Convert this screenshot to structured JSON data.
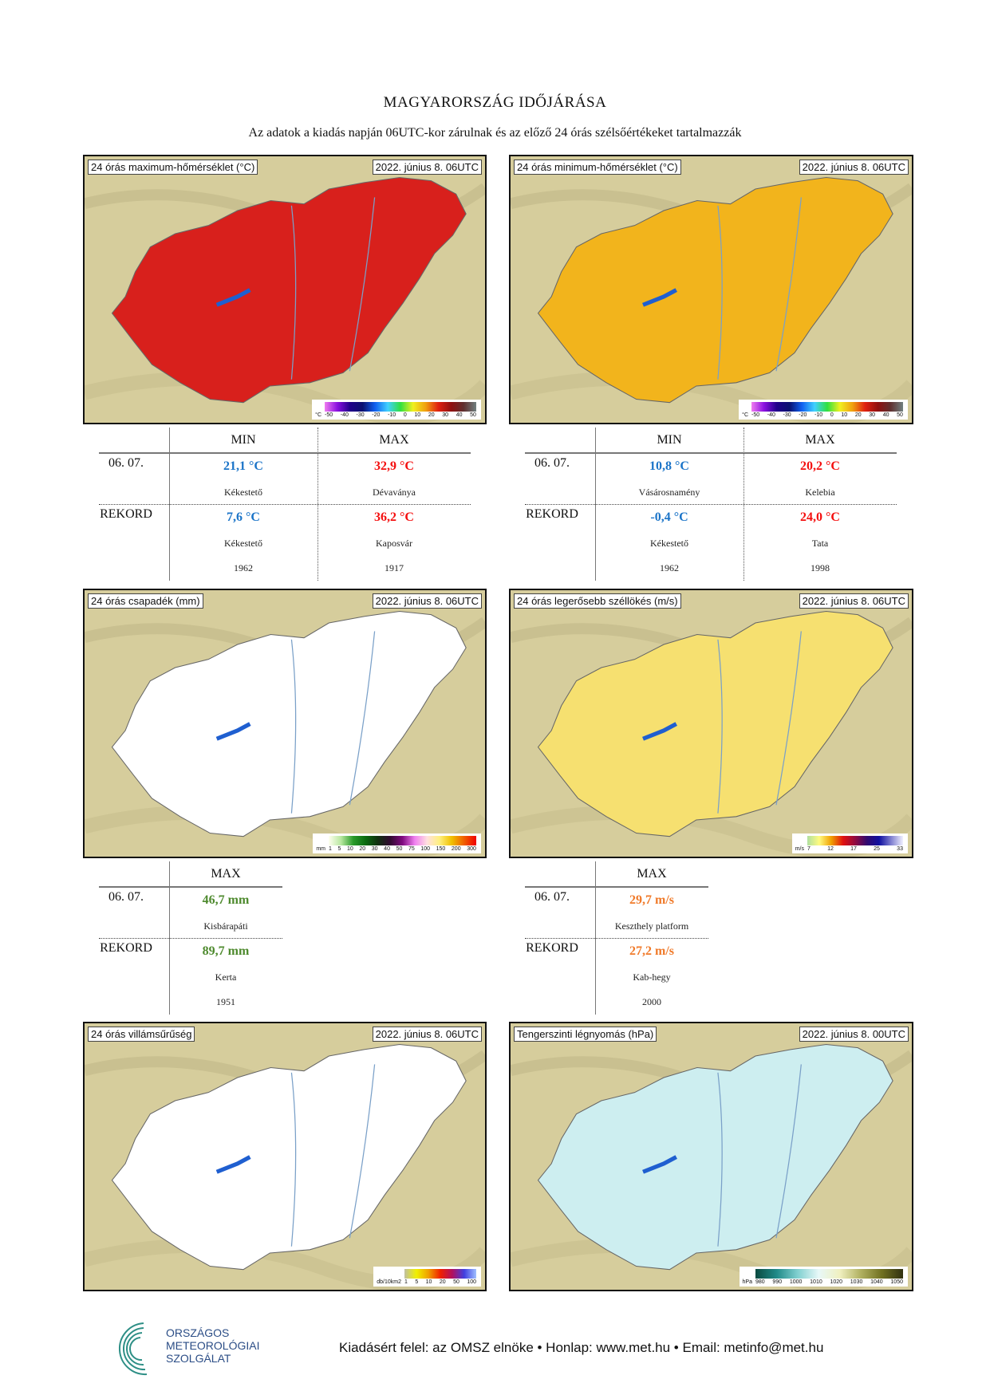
{
  "header": {
    "title": "MAGYARORSZÁG IDŐJÁRÁSA",
    "subtitle": "Az adatok a kiadás napján 06UTC-kor zárulnak és az előző 24 órás szélsőértékeket tartalmazzák"
  },
  "maps": [
    {
      "title": "24 órás maximum-hőmérséklet (°C)",
      "date": "2022. június 8. 06UTC",
      "legend_unit": "°C",
      "legend_ticks": [
        "-50",
        "-40",
        "-30",
        "-20",
        "-10",
        "0",
        "10",
        "20",
        "30",
        "40",
        "50"
      ],
      "fill": "#d8201c",
      "gradient": "linear-gradient(90deg,#f07cf0,#8a10e0,#20008a,#0a1070,#1060f0,#40d0ff,#30e040,#f0f020,#f0a010,#e02010,#901010,#603030,#708080)"
    },
    {
      "title": "24 órás minimum-hőmérséklet (°C)",
      "date": "2022. június 8. 06UTC",
      "legend_unit": "°C",
      "legend_ticks": [
        "-50",
        "-40",
        "-30",
        "-20",
        "-10",
        "0",
        "10",
        "20",
        "30",
        "40",
        "50"
      ],
      "fill": "#f2b41c",
      "gradient": "linear-gradient(90deg,#f07cf0,#8a10e0,#20008a,#0a1070,#1060f0,#40d0ff,#30e040,#f0f020,#f0a010,#e02010,#901010,#603030,#708080)"
    },
    {
      "title": "24 órás csapadék (mm)",
      "date": "2022. június 8. 06UTC",
      "legend_unit": "mm",
      "legend_ticks": [
        "1",
        "5",
        "10",
        "20",
        "30",
        "40",
        "50",
        "75",
        "100",
        "150",
        "200",
        "300"
      ],
      "fill": "#ffffff",
      "gradient": "linear-gradient(90deg,#fffff0,#b8e8a0,#2a9a2a,#0a6a10,#103010,#300a30,#800a80,#f080f0,#ffe0e0,#fff080,#f0c000,#f06000,#f00000)"
    },
    {
      "title": "24 órás legerősebb széllökés (m/s)",
      "date": "2022. június 8. 06UTC",
      "legend_unit": "m/s",
      "legend_ticks": [
        "7",
        "12",
        "17",
        "25",
        "33"
      ],
      "fill": "#f6e070",
      "gradient": "linear-gradient(90deg,#b0e0a0,#fffa80,#f0a000,#e01010,#900a40,#300a70,#1010a0,#8080d0,#f0f0ff)"
    },
    {
      "title": "24 órás villámsűrűség",
      "date": "2022. június 8. 06UTC",
      "legend_unit": "db/10km2",
      "legend_ticks": [
        "1",
        "5",
        "10",
        "20",
        "50",
        "100"
      ],
      "fill": "#ffffff",
      "gradient": "linear-gradient(90deg,#c0c0a0,#f0f000,#f0a000,#f02000,#b01060,#4040e0,#a0c0ff)"
    },
    {
      "title": "Tengerszinti légnyomás (hPa)",
      "date": "2022. június 8. 00UTC",
      "legend_unit": "hPa",
      "legend_ticks": [
        "980",
        "990",
        "1000",
        "1010",
        "1020",
        "1030",
        "1040",
        "1050"
      ],
      "fill": "#cdeef0",
      "gradient": "linear-gradient(90deg,#0a4a40,#208a88,#80d0d0,#e8f8f8,#f0f0c0,#b0b060,#707020,#303010)"
    }
  ],
  "tables": [
    {
      "headers": [
        "MIN",
        "MAX"
      ],
      "rows": [
        {
          "label": "06. 07.",
          "cells": [
            {
              "value": "21,1 °C",
              "station": "Kékestető"
            },
            {
              "value": "32,9 °C",
              "station": "Dévaványa"
            }
          ]
        },
        {
          "label": "REKORD",
          "cells": [
            {
              "value": "7,6 °C",
              "station": "Kékestető",
              "year": "1962"
            },
            {
              "value": "36,2 °C",
              "station": "Kaposvár",
              "year": "1917"
            }
          ]
        }
      ]
    },
    {
      "headers": [
        "MIN",
        "MAX"
      ],
      "rows": [
        {
          "label": "06. 07.",
          "cells": [
            {
              "value": "10,8 °C",
              "station": "Vásárosnamény"
            },
            {
              "value": "20,2 °C",
              "station": "Kelebia"
            }
          ]
        },
        {
          "label": "REKORD",
          "cells": [
            {
              "value": "-0,4 °C",
              "station": "Kékestető",
              "year": "1962"
            },
            {
              "value": "24,0 °C",
              "station": "Tata",
              "year": "1998"
            }
          ]
        }
      ]
    },
    {
      "headers": [
        "MAX"
      ],
      "rows": [
        {
          "label": "06. 07.",
          "cells": [
            {
              "value": "46,7 mm",
              "station": "Kisbárapáti"
            }
          ]
        },
        {
          "label": "REKORD",
          "cells": [
            {
              "value": "89,7 mm",
              "station": "Kerta",
              "year": "1951"
            }
          ]
        }
      ]
    },
    {
      "headers": [
        "MAX"
      ],
      "rows": [
        {
          "label": "06. 07.",
          "cells": [
            {
              "value": "29,7 m/s",
              "station": "Keszthely platform"
            }
          ]
        },
        {
          "label": "REKORD",
          "cells": [
            {
              "value": "27,2 m/s",
              "station": "Kab-hegy",
              "year": "2000"
            }
          ]
        }
      ]
    }
  ],
  "footer": {
    "logo_lines": [
      "ORSZÁGOS",
      "METEOROLÓGIAI",
      "SZOLGÁLAT"
    ],
    "text": "Kiadásért felel: az OMSZ elnöke • Honlap: www.met.hu • Email: metinfo@met.hu"
  },
  "colors": {
    "min": "#1b74c8",
    "max": "#f40f0f",
    "precip": "#4e8a2e",
    "wind": "#f07a2a"
  }
}
